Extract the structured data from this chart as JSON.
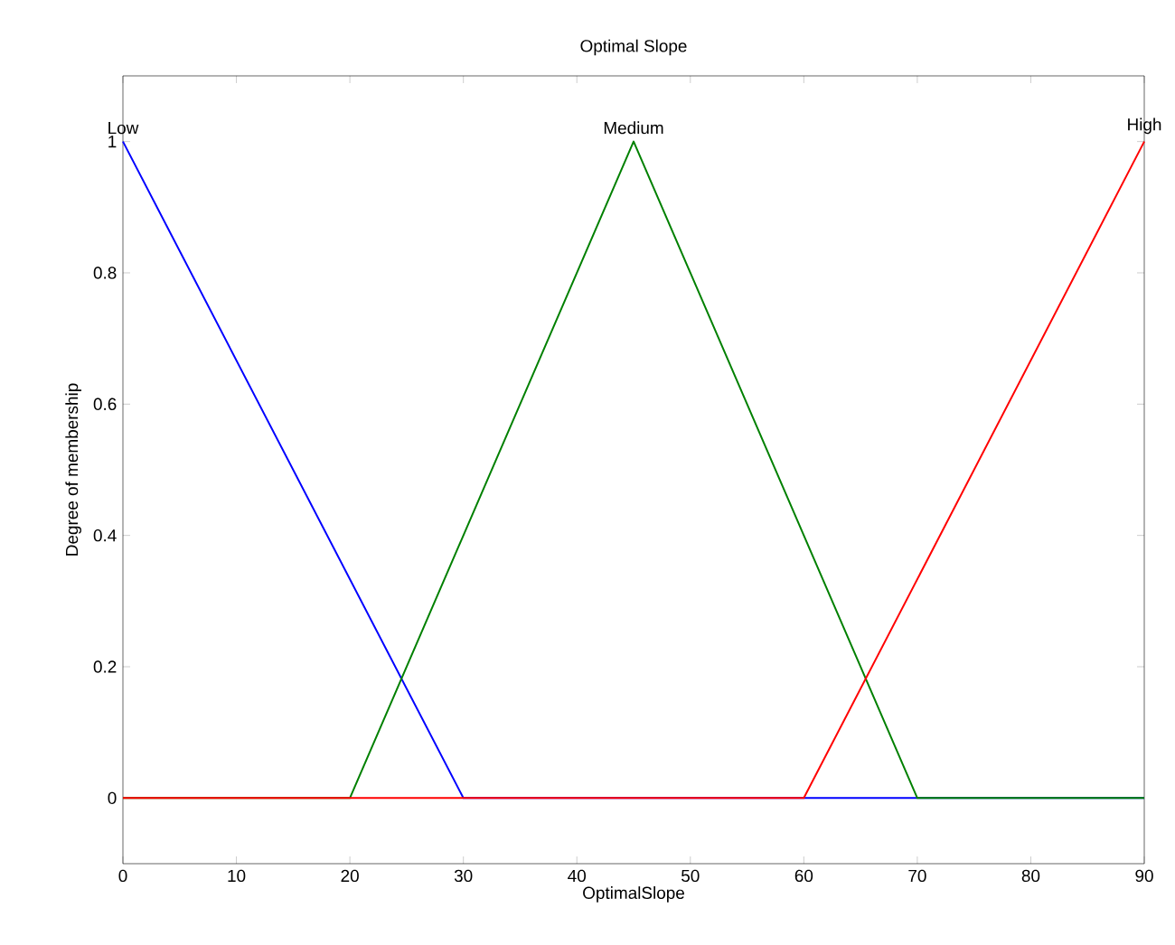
{
  "chart_data": {
    "type": "line",
    "title": "Optimal Slope",
    "xlabel": "OptimalSlope",
    "ylabel": "Degree of membership",
    "xlim": [
      0,
      90
    ],
    "xticks": [
      0,
      10,
      20,
      30,
      40,
      50,
      60,
      70,
      80,
      90
    ],
    "ylim": [
      -0.1,
      1.1
    ],
    "yticks": [
      0,
      0.2,
      0.4,
      0.6,
      0.8,
      1
    ],
    "grid": false,
    "legend": false,
    "marker": "none",
    "line_style": "solid",
    "series": [
      {
        "name": "Low",
        "color": "#0000ff",
        "x": [
          0,
          30,
          90
        ],
        "values": [
          1,
          0,
          0
        ]
      },
      {
        "name": "Medium",
        "color": "#008000",
        "x": [
          0,
          20,
          45,
          70,
          90
        ],
        "values": [
          0,
          0,
          1,
          0,
          0
        ]
      },
      {
        "name": "High",
        "color": "#ff0000",
        "x": [
          0,
          60,
          90
        ],
        "values": [
          0,
          0,
          1
        ]
      }
    ]
  }
}
